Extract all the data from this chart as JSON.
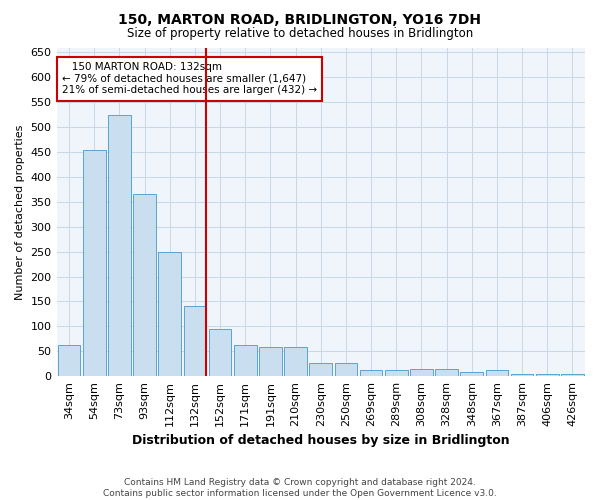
{
  "title": "150, MARTON ROAD, BRIDLINGTON, YO16 7DH",
  "subtitle": "Size of property relative to detached houses in Bridlington",
  "xlabel": "Distribution of detached houses by size in Bridlington",
  "ylabel": "Number of detached properties",
  "footer_line1": "Contains HM Land Registry data © Crown copyright and database right 2024.",
  "footer_line2": "Contains public sector information licensed under the Open Government Licence v3.0.",
  "annotation_line1": "   150 MARTON ROAD: 132sqm",
  "annotation_line2": "← 79% of detached houses are smaller (1,647)",
  "annotation_line3": "21% of semi-detached houses are larger (432) →",
  "bar_marker_index": 5,
  "categories": [
    "34sqm",
    "54sqm",
    "73sqm",
    "93sqm",
    "112sqm",
    "132sqm",
    "152sqm",
    "171sqm",
    "191sqm",
    "210sqm",
    "230sqm",
    "250sqm",
    "269sqm",
    "289sqm",
    "308sqm",
    "328sqm",
    "348sqm",
    "367sqm",
    "387sqm",
    "406sqm",
    "426sqm"
  ],
  "values": [
    62,
    455,
    525,
    365,
    250,
    140,
    95,
    63,
    58,
    58,
    27,
    27,
    12,
    12,
    15,
    15,
    8,
    12,
    5,
    5,
    5
  ],
  "bar_color": "#c9dff0",
  "bar_edge_color": "#5ba3d0",
  "marker_line_color": "#cc0000",
  "grid_color": "#c8d8e8",
  "bg_color": "#f0f5fb",
  "ylim": [
    0,
    660
  ],
  "yticks": [
    0,
    50,
    100,
    150,
    200,
    250,
    300,
    350,
    400,
    450,
    500,
    550,
    600,
    650
  ]
}
